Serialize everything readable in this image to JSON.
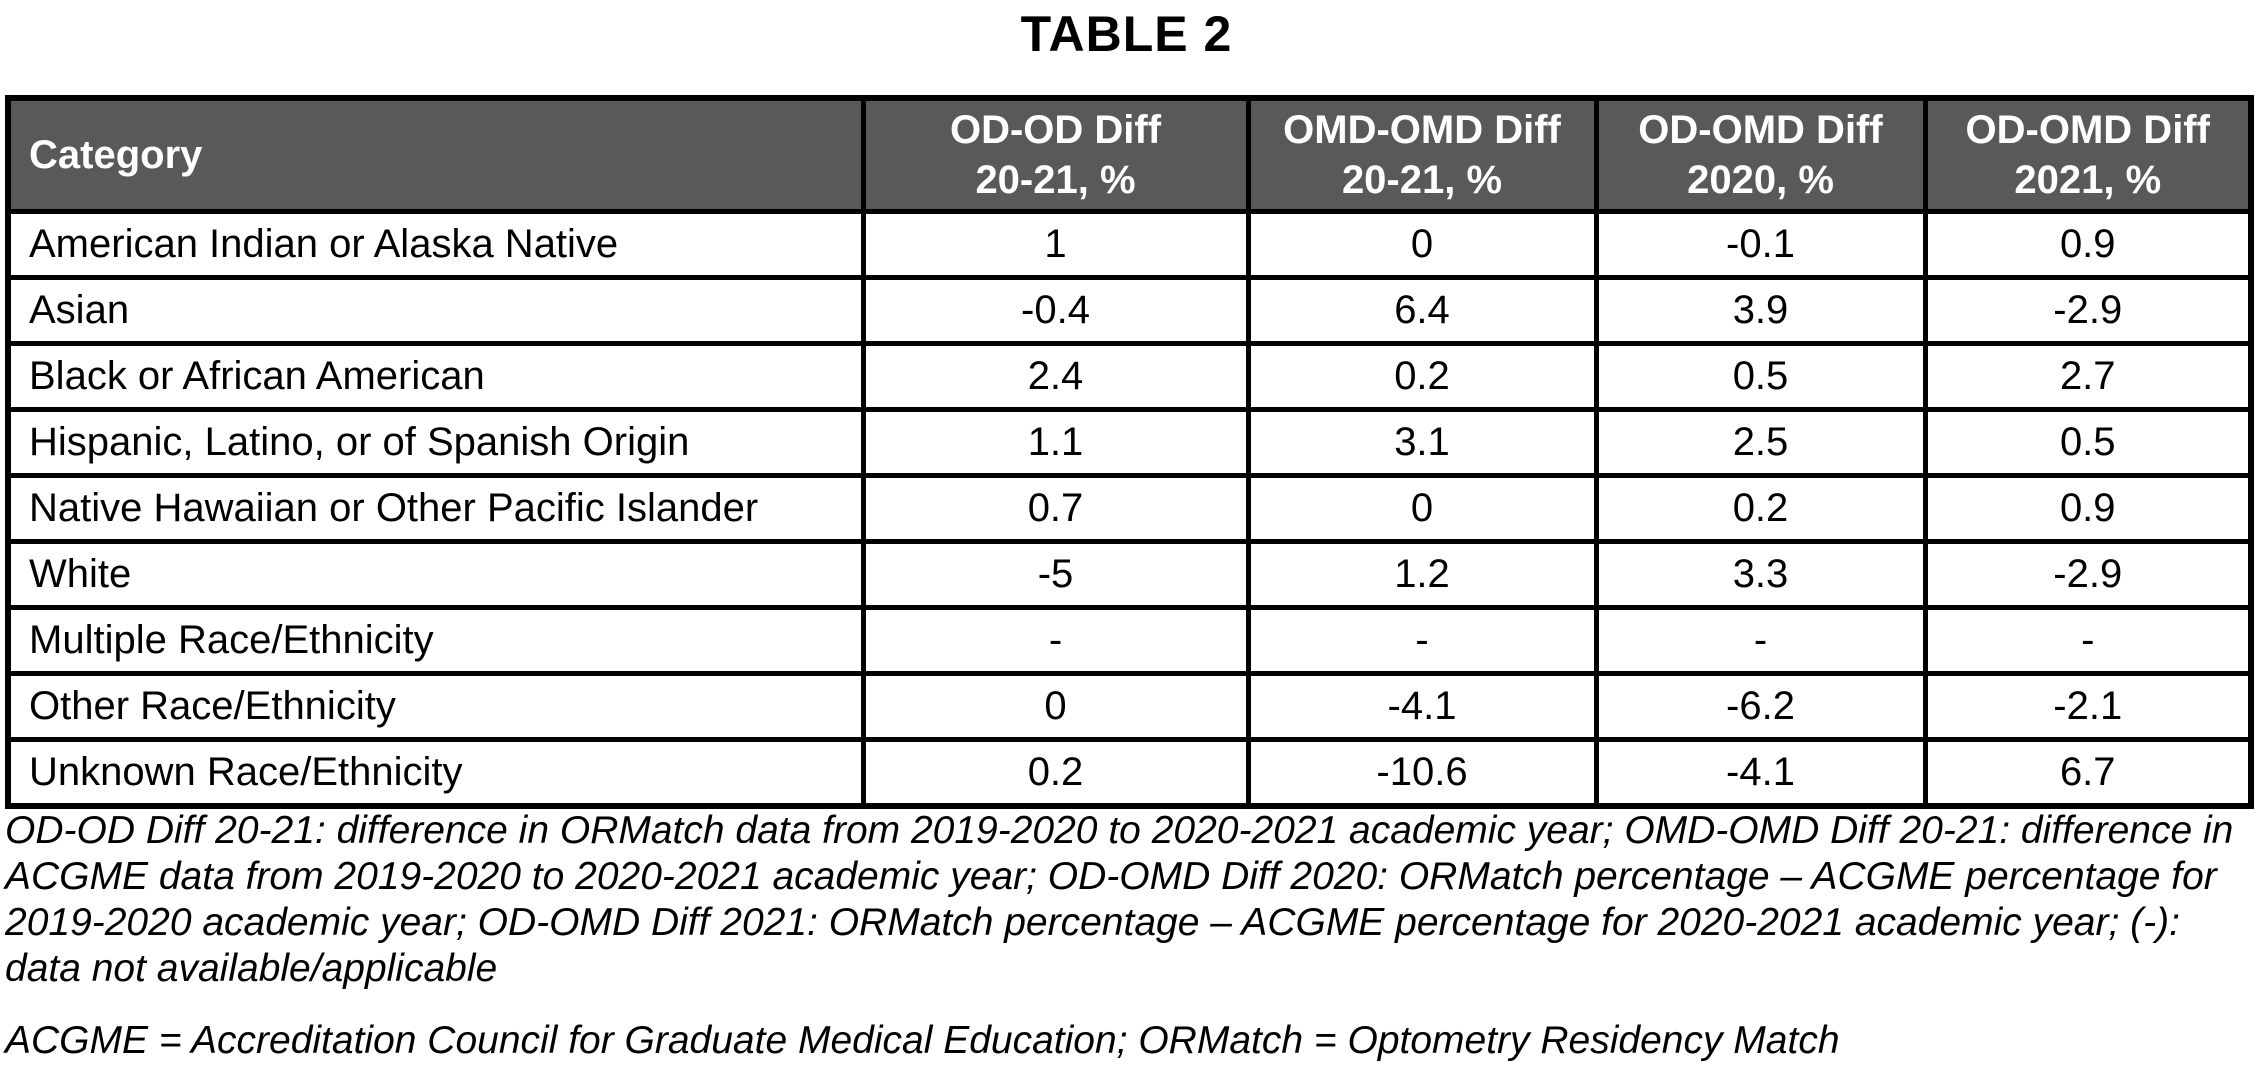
{
  "title": "TABLE 2",
  "colors": {
    "header_bg": "#595959",
    "header_text": "#ffffff",
    "border": "#000000",
    "body_text": "#000000",
    "page_bg": "#ffffff"
  },
  "table": {
    "header": {
      "category": "Category",
      "cols": [
        {
          "line1": "OD-OD Diff",
          "line2": "20-21, %"
        },
        {
          "line1": "OMD-OMD Diff",
          "line2": "20-21, %"
        },
        {
          "line1": "OD-OMD Diff",
          "line2": "2020, %"
        },
        {
          "line1": "OD-OMD Diff",
          "line2": "2021, %"
        }
      ]
    },
    "rows": [
      {
        "category": "American Indian or Alaska Native",
        "values": [
          "1",
          "0",
          "-0.1",
          "0.9"
        ]
      },
      {
        "category": "Asian",
        "values": [
          "-0.4",
          "6.4",
          "3.9",
          "-2.9"
        ]
      },
      {
        "category": "Black or African American",
        "values": [
          "2.4",
          "0.2",
          "0.5",
          "2.7"
        ]
      },
      {
        "category": "Hispanic, Latino, or of Spanish Origin",
        "values": [
          "1.1",
          "3.1",
          "2.5",
          "0.5"
        ]
      },
      {
        "category": "Native Hawaiian or Other Pacific Islander",
        "values": [
          "0.7",
          "0",
          "0.2",
          "0.9"
        ]
      },
      {
        "category": "White",
        "values": [
          "-5",
          "1.2",
          "3.3",
          "-2.9"
        ]
      },
      {
        "category": "Multiple Race/Ethnicity",
        "values": [
          "-",
          "-",
          "-",
          "-"
        ]
      },
      {
        "category": "Other Race/Ethnicity",
        "values": [
          "0",
          "-4.1",
          "-6.2",
          "-2.1"
        ]
      },
      {
        "category": "Unknown Race/Ethnicity",
        "values": [
          "0.2",
          "-10.6",
          "-4.1",
          "6.7"
        ]
      }
    ]
  },
  "footnotes": {
    "definitions": "OD-OD Diff 20-21: difference in ORMatch data from 2019-2020 to 2020-2021 academic year; OMD-OMD Diff 20-21: difference in ACGME data from 2019-2020 to 2020-2021 academic year; OD-OMD Diff 2020: ORMatch percentage – ACGME percentage for 2019-2020 academic year; OD-OMD Diff 2021: ORMatch percentage – ACGME percentage for 2020-2021 academic year; (-): data not available/applicable",
    "abbreviations": "ACGME = Accreditation Council for Graduate Medical Education; ORMatch = Optometry Residency Match"
  }
}
